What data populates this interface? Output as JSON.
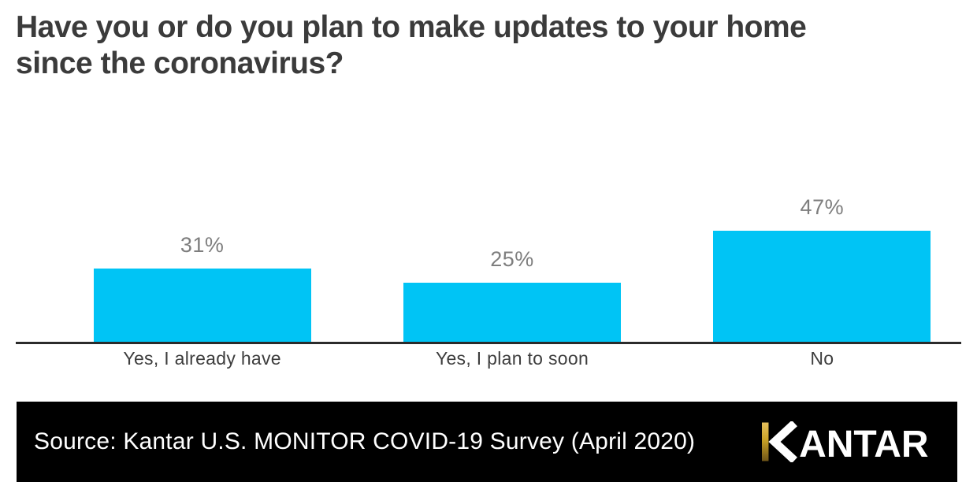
{
  "title": {
    "text": "Have you or do you plan to make updates to your home since the coronavirus?",
    "lines": [
      "Have you or do you plan to make updates to your home",
      "since the coronavirus?"
    ],
    "color": "#3b3b3b"
  },
  "chart_data": {
    "type": "bar",
    "title": "Have you or do you plan to make updates to your home since the coronavirus?",
    "categories": [
      "Yes, I already have",
      "Yes, I plan to soon",
      "No"
    ],
    "values": [
      31,
      25,
      47
    ],
    "value_labels": [
      "31%",
      "25%",
      "47%"
    ],
    "xlabel": "",
    "ylabel": "",
    "ylim": [
      0,
      100
    ],
    "grid": false,
    "legend": "none",
    "bar_color": "#00c4f5",
    "value_label_color": "#7e7e7e",
    "category_label_color": "#3d3d3d",
    "axis_line_color": "#2b2b2b"
  },
  "footer": {
    "background": "#000000",
    "source_text": "Source: Kantar U.S. MONITOR COVID-19 Survey (April 2020)",
    "logo": {
      "text": "KANTAR",
      "letters_after_k": "ANTAR",
      "stem_color_top": "#e5c05c",
      "stem_color_mid": "#c9a227",
      "stem_color_bottom": "#6e5418",
      "letter_color": "#ffffff"
    }
  }
}
